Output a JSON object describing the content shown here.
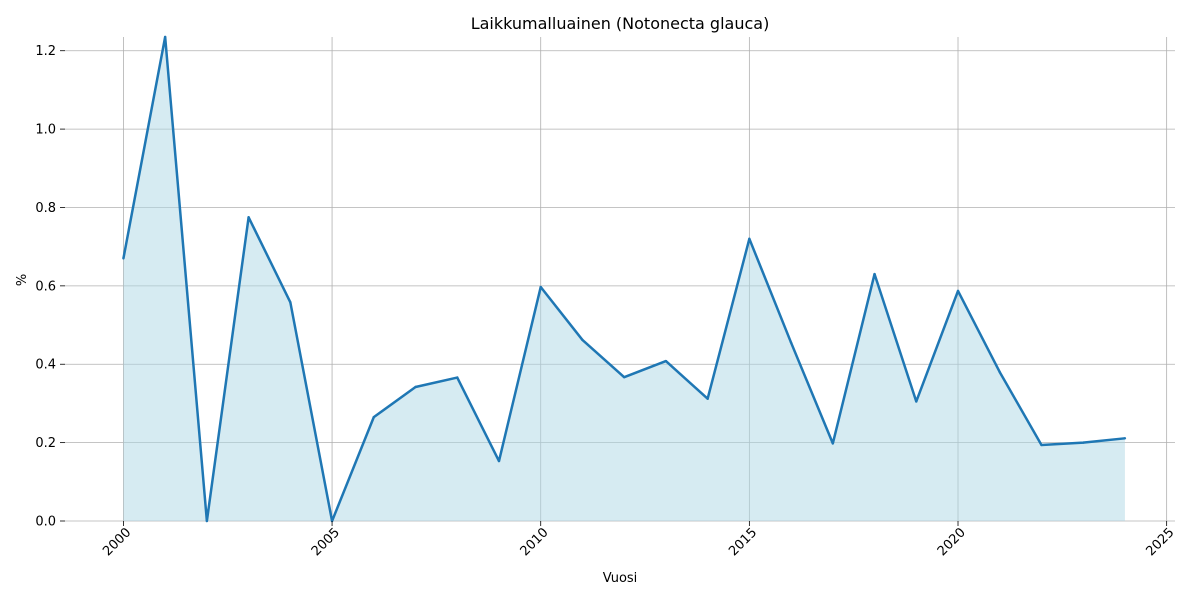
{
  "chart_data": {
    "type": "area",
    "title": "Laikkumalluainen (Notonecta glauca)",
    "xlabel": "Vuosi",
    "ylabel": "%",
    "x": [
      2000,
      2001,
      2002,
      2003,
      2004,
      2005,
      2006,
      2007,
      2008,
      2009,
      2010,
      2011,
      2012,
      2013,
      2014,
      2015,
      2016,
      2017,
      2018,
      2019,
      2020,
      2021,
      2022,
      2023,
      2024
    ],
    "series": [
      {
        "values": [
          0.67,
          1.235,
          0.0,
          0.775,
          0.558,
          0.0,
          0.265,
          0.342,
          0.366,
          0.153,
          0.597,
          0.462,
          0.367,
          0.408,
          0.312,
          0.72,
          0.455,
          0.198,
          0.63,
          0.305,
          0.587,
          0.38,
          0.194,
          0.2,
          0.211
        ]
      }
    ],
    "xlim": [
      1998.6,
      2025.2
    ],
    "ylim": [
      0,
      1.235
    ],
    "xticks": [
      "2000",
      "2005",
      "2010",
      "2015",
      "2020",
      "2025"
    ],
    "yticks": [
      "0.0",
      "0.2",
      "0.4",
      "0.6",
      "0.8",
      "1.0",
      "1.2"
    ],
    "grid": true,
    "colors": {
      "line": "#1f77b4",
      "fill": "#add8e6",
      "grid": "#b0b0b0"
    }
  }
}
